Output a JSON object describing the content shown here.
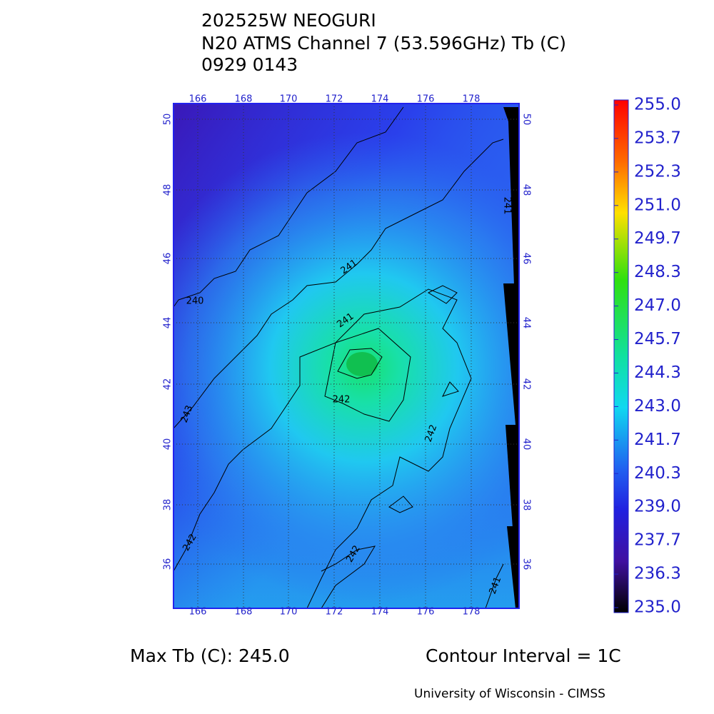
{
  "title": {
    "lines": [
      "202525W NEOGURI",
      "N20 ATMS Channel 7 (53.596GHz) Tb (C)",
      "0929 0143"
    ]
  },
  "map": {
    "lon_labels": [
      "166",
      "168",
      "170",
      "172",
      "174",
      "176",
      "178"
    ],
    "lat_labels": [
      "50",
      "48",
      "46",
      "44",
      "42",
      "40",
      "38",
      "36"
    ],
    "contour_labels": [
      "240",
      "241",
      "241",
      "242",
      "243",
      "242",
      "242",
      "242",
      "241",
      "241"
    ]
  },
  "colorbar": {
    "labels": [
      "255.0",
      "253.7",
      "252.3",
      "251.0",
      "249.7",
      "248.3",
      "247.0",
      "245.7",
      "244.3",
      "243.0",
      "241.7",
      "240.3",
      "239.0",
      "237.7",
      "236.3",
      "235.0"
    ]
  },
  "footer": {
    "max_tb": "Max Tb (C): 245.0",
    "contour_interval": "Contour Interval = 1C",
    "credit": "University of Wisconsin - CIMSS"
  }
}
